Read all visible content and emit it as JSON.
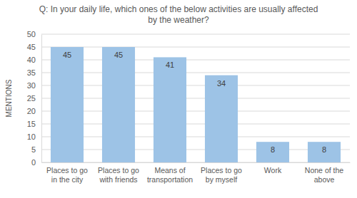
{
  "chart_data": {
    "type": "bar",
    "title": "Q: In your daily life, which ones of the below activities are usually affected by the weather?",
    "y_label": "MENTIONS",
    "categories": [
      "Places to go in the city",
      "Places to go with friends",
      "Means of transportation",
      "Places to go by myself",
      "Work",
      "None of the above"
    ],
    "values": [
      45,
      45,
      41,
      34,
      8,
      8
    ],
    "color": "#9dc3e6",
    "ylim": [
      0,
      50
    ],
    "yticks": [
      0,
      5,
      10,
      15,
      20,
      25,
      30,
      35,
      40,
      45,
      50
    ],
    "grid": true,
    "data_labels": true
  }
}
